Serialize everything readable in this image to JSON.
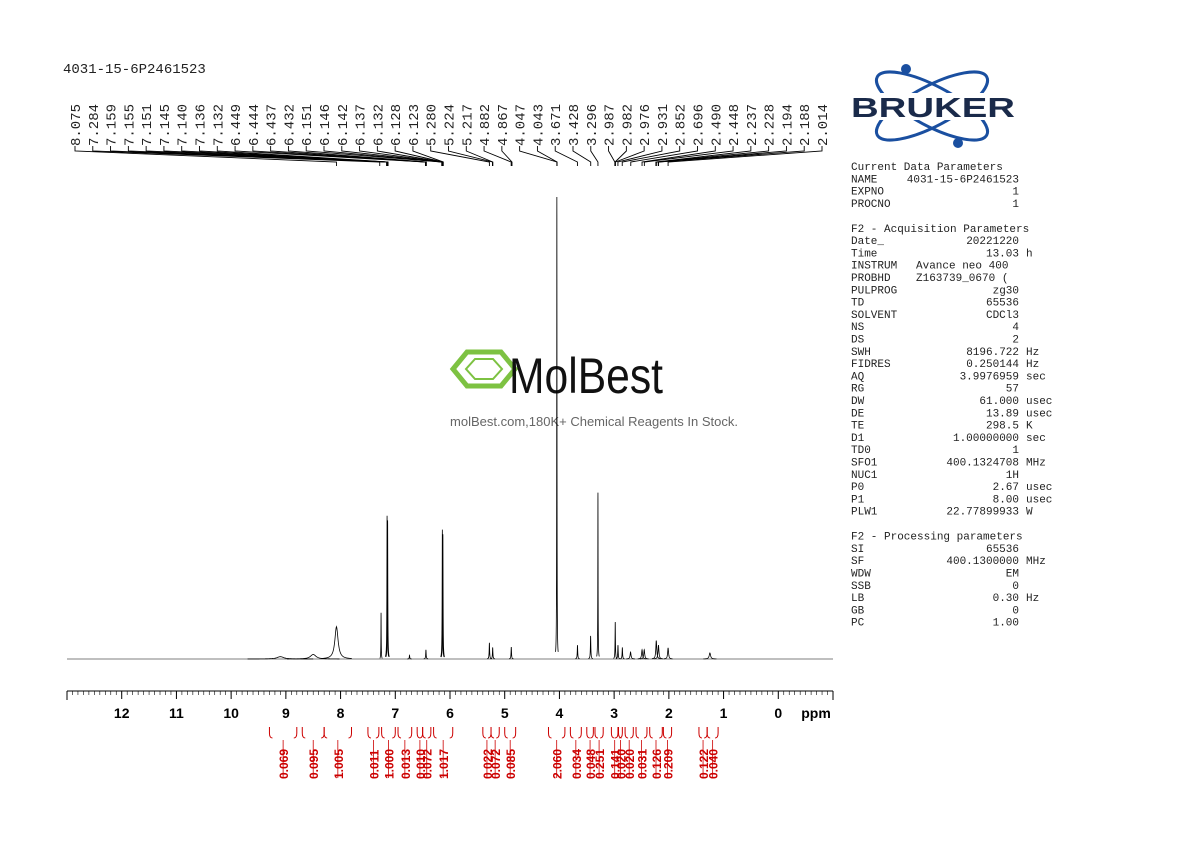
{
  "chart_data": {
    "type": "nmr",
    "title": "4031-15-6P2461523",
    "x_label": "ppm",
    "xlim": [
      13.0,
      -1.0
    ],
    "xticks": [
      12,
      11,
      10,
      9,
      8,
      7,
      6,
      5,
      4,
      3,
      2,
      1,
      0
    ],
    "ylim": [
      0,
      100
    ],
    "color": "#000000",
    "peaks": {
      "x": [
        9.1,
        8.5,
        8.075,
        7.26,
        7.15,
        7.14,
        6.74,
        6.44,
        6.14,
        6.13,
        5.28,
        5.22,
        4.88,
        4.047,
        3.67,
        3.43,
        3.296,
        2.98,
        2.93,
        2.85,
        2.7,
        2.49,
        2.45,
        2.23,
        2.19,
        2.014,
        1.25
      ],
      "widths": [
        0.15,
        0.12,
        0.07,
        0.006,
        0.008,
        0.008,
        0.01,
        0.01,
        0.008,
        0.008,
        0.01,
        0.01,
        0.01,
        0.006,
        0.01,
        0.01,
        0.006,
        0.008,
        0.01,
        0.01,
        0.02,
        0.02,
        0.02,
        0.02,
        0.02,
        0.02,
        0.03
      ],
      "values": [
        0.5,
        1,
        7,
        10,
        31,
        30,
        0.8,
        2,
        28,
        27,
        3.5,
        2.5,
        2.6,
        100,
        3,
        5,
        36,
        8,
        3,
        2.5,
        1.5,
        2,
        2,
        4,
        3,
        2.4,
        1.3
      ]
    },
    "peak_labels": [
      8.075,
      7.284,
      7.159,
      7.155,
      7.151,
      7.145,
      {
        "value": 7.14,
        "label": "7.140"
      },
      7.136,
      7.132,
      6.449,
      6.444,
      6.437,
      6.432,
      6.151,
      6.146,
      6.142,
      6.137,
      6.132,
      6.128,
      6.123,
      {
        "value": 5.28,
        "label": "5.280"
      },
      5.224,
      5.217,
      4.882,
      4.867,
      4.047,
      4.043,
      3.671,
      3.428,
      3.296,
      2.987,
      2.982,
      2.976,
      2.931,
      2.852,
      2.696,
      {
        "value": 2.49,
        "label": "2.490"
      },
      2.448,
      2.237,
      2.228,
      2.194,
      2.188,
      2.014
    ],
    "integrals": {
      "color": "#cc0000",
      "ranges": [
        [
          9.3,
          8.8
        ],
        [
          8.7,
          8.3
        ],
        [
          8.3,
          7.8
        ],
        [
          7.5,
          7.3
        ],
        [
          7.25,
          7.0
        ],
        [
          6.95,
          6.7
        ],
        [
          6.6,
          6.5
        ],
        [
          6.5,
          6.35
        ],
        [
          6.3,
          5.95
        ],
        [
          5.4,
          5.25
        ],
        [
          5.25,
          5.1
        ],
        [
          5.0,
          4.8
        ],
        [
          4.2,
          3.9
        ],
        [
          3.8,
          3.6
        ],
        [
          3.5,
          3.38
        ],
        [
          3.35,
          3.2
        ],
        [
          3.05,
          2.93
        ],
        [
          2.92,
          2.85
        ],
        [
          2.8,
          2.65
        ],
        [
          2.6,
          2.4
        ],
        [
          2.35,
          2.12
        ],
        [
          2.1,
          1.95
        ],
        [
          1.45,
          1.3
        ],
        [
          1.3,
          1.1
        ]
      ],
      "values": [
        0.069,
        0.095,
        1.005,
        0.011,
        {
          "value": 1,
          "label": "1.000"
        },
        0.013,
        {
          "value": 0.01,
          "label": "0.010"
        },
        0.072,
        1.017,
        0.022,
        0.072,
        0.085,
        {
          "value": 2.06,
          "label": "2.060"
        },
        0.034,
        0.048,
        0.251,
        0.141,
        {
          "value": 0.02,
          "label": "0.020"
        },
        {
          "value": 0.02,
          "label": "0.020"
        },
        0.031,
        0.126,
        0.209,
        0.122,
        {
          "value": 0.04,
          "label": "0.040"
        }
      ]
    }
  },
  "logo": "BRUKER",
  "watermark": {
    "name": "MolBest",
    "tagline": "molBest.com,180K+ Chemical Reagents In Stock."
  },
  "parameters": [
    {
      "title": "Current Data Parameters",
      "rows": [
        [
          "NAME",
          "4031-15-6P2461523",
          ""
        ],
        [
          "EXPNO",
          "1",
          ""
        ],
        [
          "PROCNO",
          "1",
          ""
        ]
      ]
    },
    {
      "title": "F2 - Acquisition Parameters",
      "rows": [
        [
          "Date_",
          "20221220",
          ""
        ],
        [
          "Time",
          "13.03",
          "h"
        ],
        [
          "INSTRUM",
          "Avance neo 400",
          ""
        ],
        [
          "PROBHD",
          "Z163739_0670 (",
          ""
        ],
        [
          "PULPROG",
          "zg30",
          ""
        ],
        [
          "TD",
          "65536",
          ""
        ],
        [
          "SOLVENT",
          "CDCl3",
          ""
        ],
        [
          "NS",
          "4",
          ""
        ],
        [
          "DS",
          "2",
          ""
        ],
        [
          "SWH",
          "8196.722",
          "Hz"
        ],
        [
          "FIDRES",
          "0.250144",
          "Hz"
        ],
        [
          "AQ",
          "3.9976959",
          "sec"
        ],
        [
          "RG",
          "57",
          ""
        ],
        [
          "DW",
          "61.000",
          "usec"
        ],
        [
          "DE",
          "13.89",
          "usec"
        ],
        [
          "TE",
          "298.5",
          "K"
        ],
        [
          "D1",
          "1.00000000",
          "sec"
        ],
        [
          "TD0",
          "1",
          ""
        ],
        [
          "SFO1",
          "400.1324708",
          "MHz"
        ],
        [
          "NUC1",
          "1H",
          ""
        ],
        [
          "P0",
          "2.67",
          "usec"
        ],
        [
          "P1",
          "8.00",
          "usec"
        ],
        [
          "PLW1",
          "22.77899933",
          "W"
        ]
      ]
    },
    {
      "title": "F2 - Processing parameters",
      "rows": [
        [
          "SI",
          "65536",
          ""
        ],
        [
          "SF",
          "400.1300000",
          "MHz"
        ],
        [
          "WDW",
          "EM",
          ""
        ],
        [
          "SSB",
          "0",
          ""
        ],
        [
          "LB",
          "0.30",
          "Hz"
        ],
        [
          "GB",
          "0",
          ""
        ],
        [
          "PC",
          "1.00",
          ""
        ]
      ]
    }
  ]
}
